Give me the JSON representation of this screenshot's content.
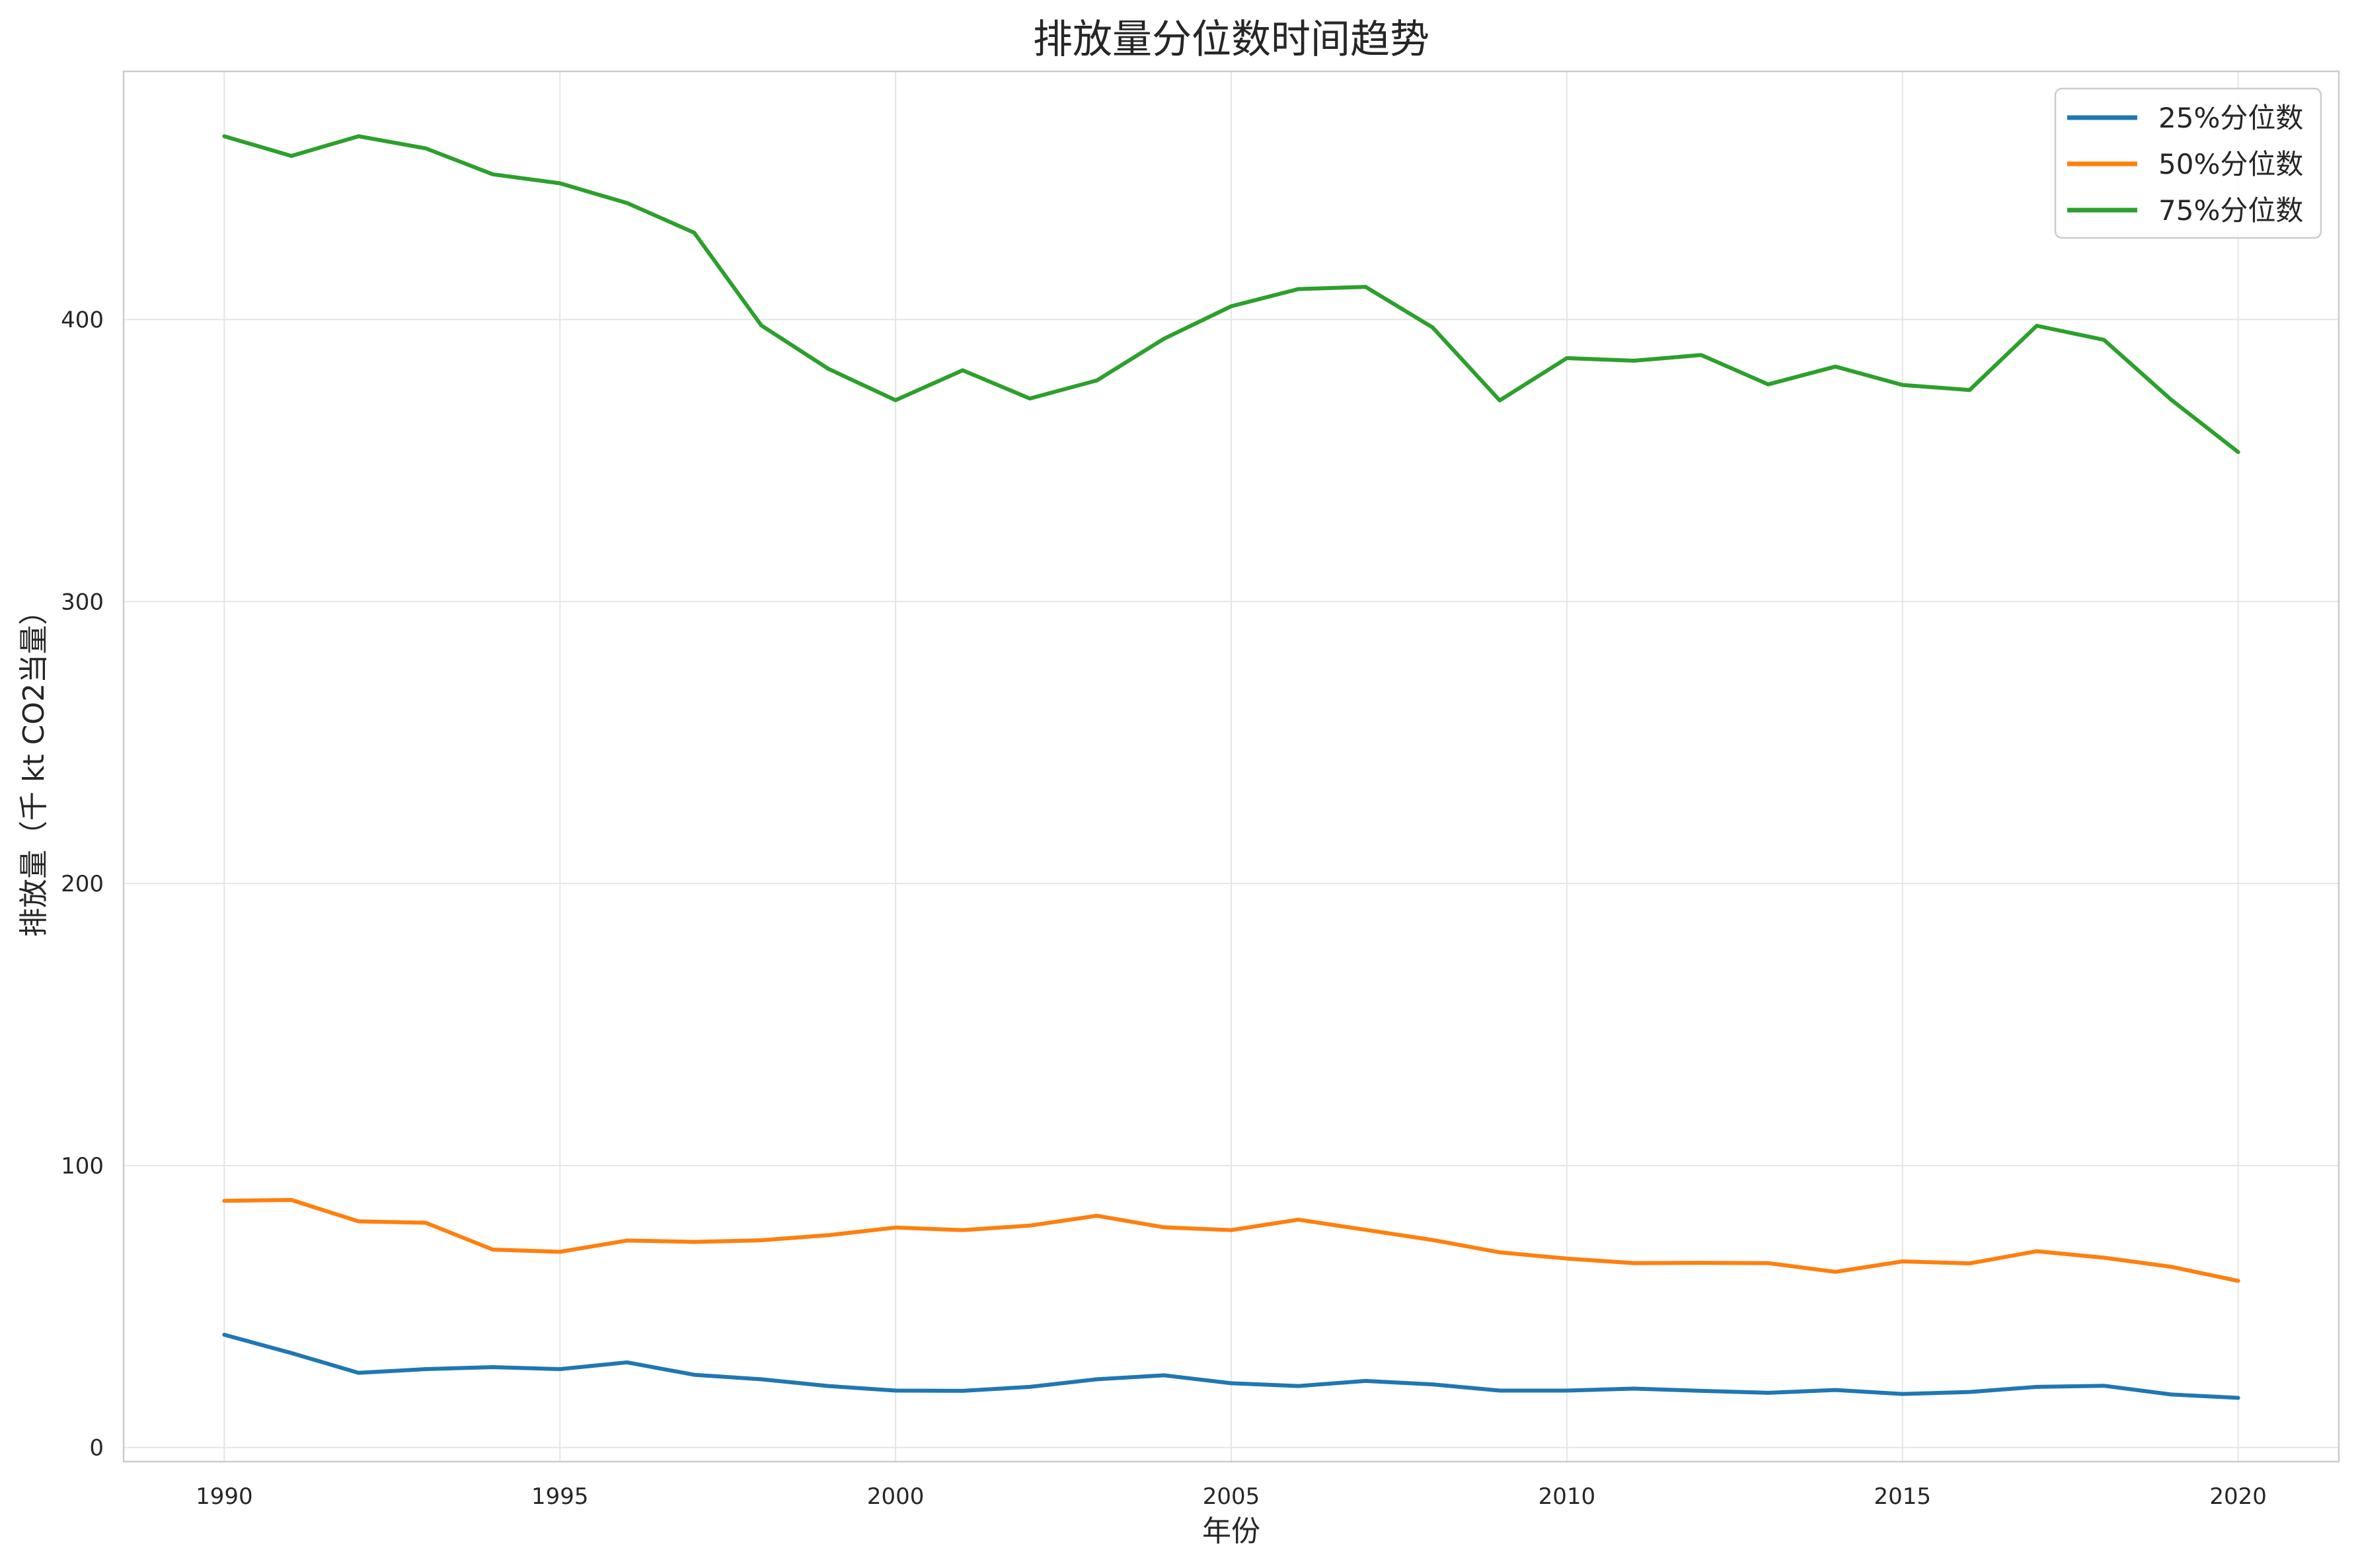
{
  "chart_data": {
    "type": "line",
    "title": "排放量分位数时间趋势",
    "xlabel": "年份",
    "ylabel": "排放量（千 kt CO2当量）",
    "xlim": [
      1988.5,
      2021.5
    ],
    "ylim": [
      -5,
      488
    ],
    "x_ticks": [
      1990,
      1995,
      2000,
      2005,
      2010,
      2015,
      2020
    ],
    "y_ticks": [
      0,
      100,
      200,
      300,
      400
    ],
    "grid": true,
    "legend_position": "top-right",
    "x": [
      1990,
      1991,
      1992,
      1993,
      1994,
      1995,
      1996,
      1997,
      1998,
      1999,
      2000,
      2001,
      2002,
      2003,
      2004,
      2005,
      2006,
      2007,
      2008,
      2009,
      2010,
      2011,
      2012,
      2013,
      2014,
      2015,
      2016,
      2017,
      2018,
      2019,
      2020
    ],
    "series": [
      {
        "name": "25%分位数",
        "color": "#1f77b4",
        "values": [
          40,
          33.5,
          26.5,
          27.8,
          28.5,
          27.8,
          30.2,
          25.8,
          24.2,
          21.8,
          20.2,
          20.1,
          21.5,
          24.2,
          25.6,
          22.8,
          21.8,
          23.6,
          22.4,
          20.2,
          20.2,
          20.9,
          20.1,
          19.4,
          20.4,
          19.0,
          19.7,
          21.5,
          21.9,
          18.8,
          17.6
        ]
      },
      {
        "name": "50%分位数",
        "color": "#ff7f0e",
        "values": [
          87.5,
          87.8,
          80.2,
          79.7,
          70.2,
          69.4,
          73.4,
          72.9,
          73.5,
          75.3,
          78.0,
          77.1,
          78.7,
          82.2,
          78.1,
          77.1,
          80.8,
          77.2,
          73.6,
          69.2,
          67.0,
          65.4,
          65.5,
          65.4,
          62.3,
          66.0,
          65.3,
          69.6,
          67.3,
          64.1,
          59.1
        ]
      },
      {
        "name": "75%分位数",
        "color": "#2ca02c",
        "values": [
          465.0,
          458.0,
          465.0,
          460.7,
          451.5,
          448.3,
          441.3,
          430.8,
          397.9,
          382.5,
          371.4,
          382.0,
          372.0,
          378.4,
          393.2,
          404.7,
          410.8,
          411.6,
          397.2,
          371.3,
          386.3,
          385.4,
          387.4,
          377.0,
          383.3,
          376.8,
          375.0,
          397.8,
          392.8,
          371.6,
          353.0
        ]
      }
    ]
  }
}
